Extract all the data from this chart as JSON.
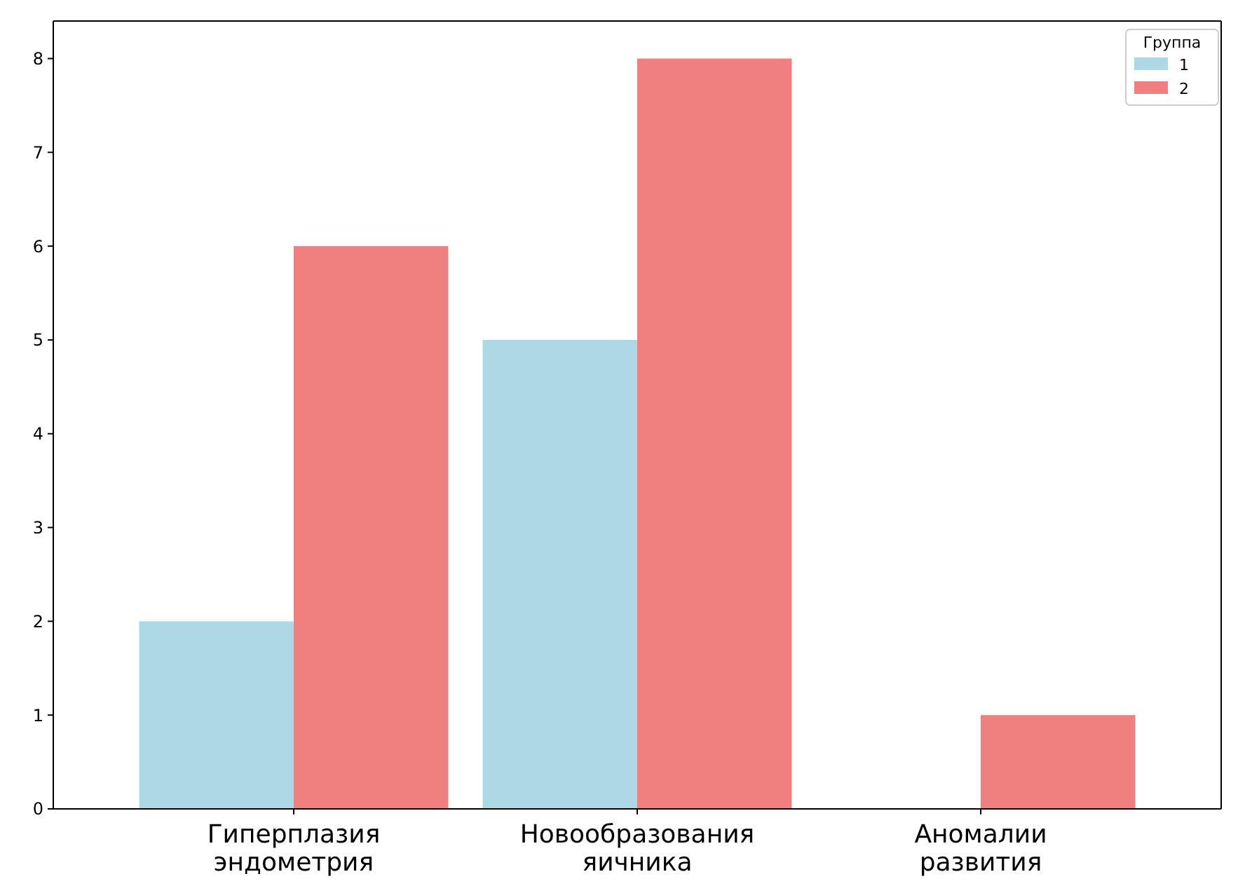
{
  "chart_data": {
    "type": "bar",
    "categories": [
      "Гиперплазия\nэндометрия",
      "Новообразования\nяичника",
      "Аномалии\nразвития"
    ],
    "series": [
      {
        "name": "1",
        "color": "#add8e6",
        "values": [
          2,
          5,
          0
        ]
      },
      {
        "name": "2",
        "color": "#f08080",
        "values": [
          6,
          8,
          1
        ]
      }
    ],
    "ylim": [
      0,
      8.4
    ],
    "yticks": [
      0,
      1,
      2,
      3,
      4,
      5,
      6,
      7,
      8
    ],
    "legend_title": "Группа",
    "legend": "top right",
    "grid": false
  }
}
